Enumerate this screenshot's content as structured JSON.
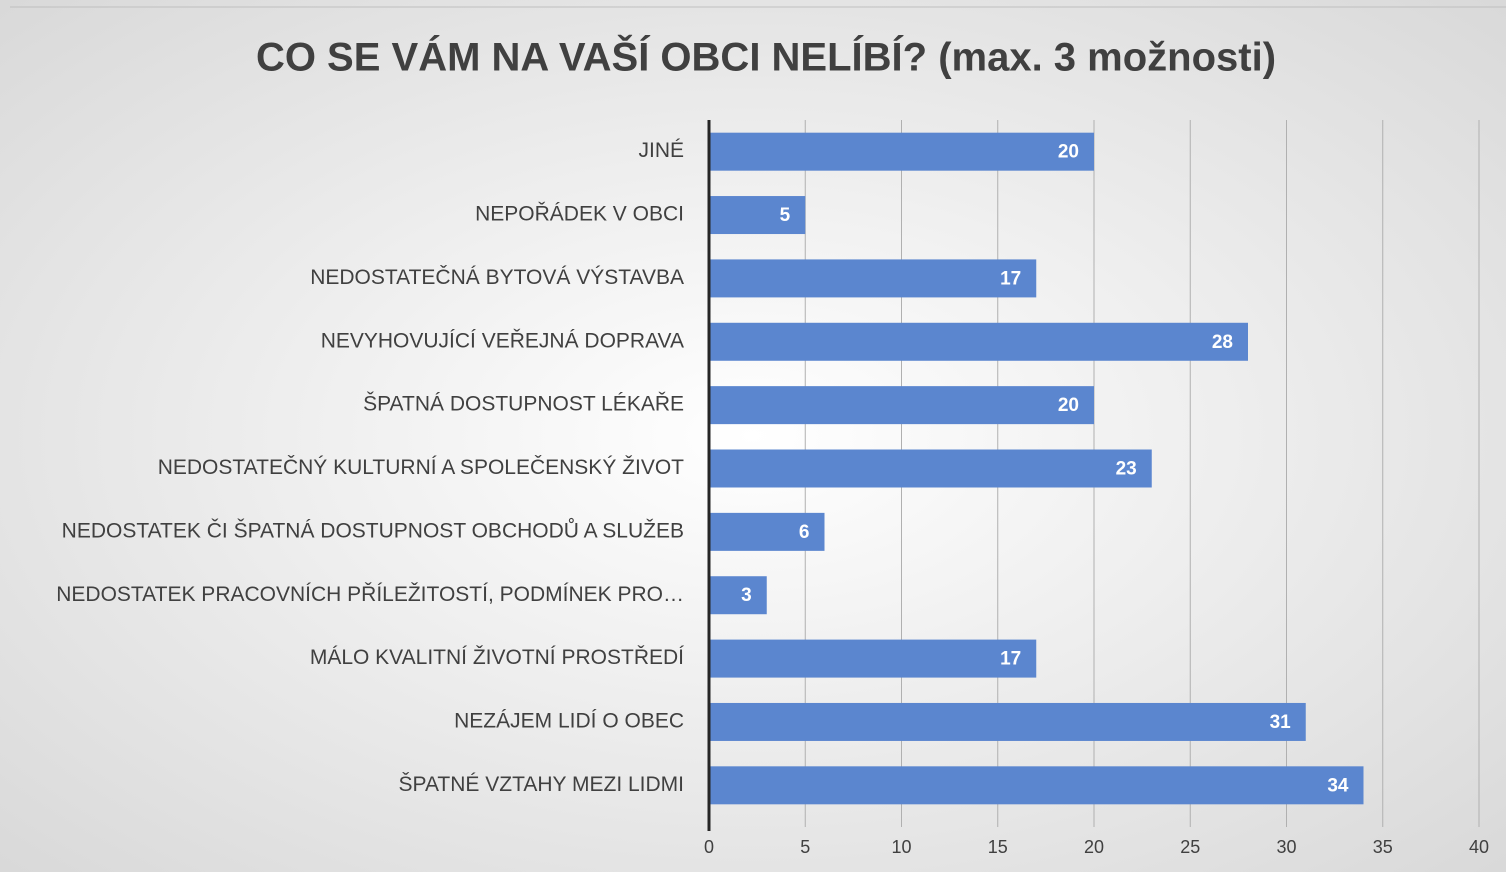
{
  "chart_data": {
    "type": "bar",
    "orientation": "horizontal",
    "title": "CO SE VÁM NA VAŠÍ OBCI NELÍBÍ? (max. 3 možnosti)",
    "categories": [
      "JINÉ",
      "NEPOŘÁDEK V OBCI",
      "NEDOSTATEČNÁ BYTOVÁ VÝSTAVBA",
      "NEVYHOVUJÍCÍ VEŘEJNÁ DOPRAVA",
      "ŠPATNÁ DOSTUPNOST LÉKAŘE",
      "NEDOSTATEČNÝ KULTURNÍ A SPOLEČENSKÝ ŽIVOT",
      "NEDOSTATEK ČI ŠPATNÁ DOSTUPNOST OBCHODŮ A SLUŽEB",
      "NEDOSTATEK PRACOVNÍCH PŘÍLEŽITOSTÍ, PODMÍNEK PRO…",
      "MÁLO KVALITNÍ ŽIVOTNÍ PROSTŘEDÍ",
      "NEZÁJEM LIDÍ O OBEC",
      "ŠPATNÉ VZTAHY MEZI LIDMI"
    ],
    "values": [
      20,
      5,
      17,
      28,
      20,
      23,
      6,
      3,
      17,
      31,
      34
    ],
    "color": "#5b86cf",
    "xlim": [
      0,
      40
    ],
    "xticks": [
      0,
      5,
      10,
      15,
      20,
      25,
      30,
      35,
      40
    ],
    "grid": true
  }
}
